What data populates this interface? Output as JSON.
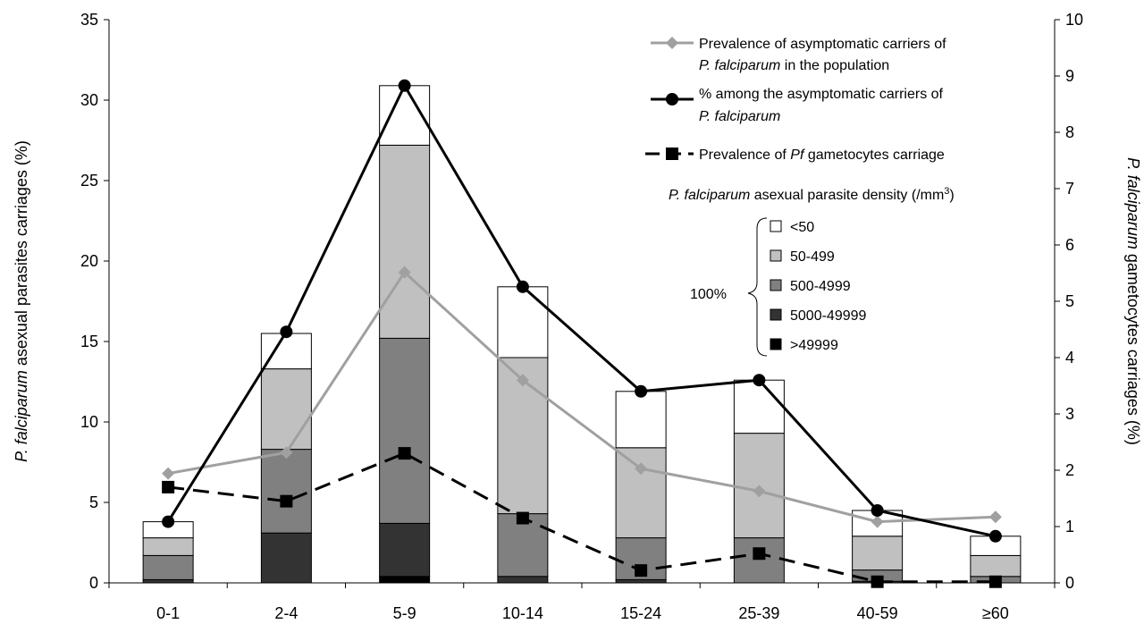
{
  "chart_data": {
    "type": "bar",
    "categories": [
      "0-1",
      "2-4",
      "5-9",
      "10-14",
      "15-24",
      "25-39",
      "40-59",
      "≥60"
    ],
    "y_left": {
      "label_italic": "P. falciparum",
      "label_rest": " asexual parasites carriages (%)",
      "range": [
        0,
        35
      ],
      "ticks": [
        0,
        5,
        10,
        15,
        20,
        25,
        30,
        35
      ]
    },
    "y_right": {
      "label_italic": "P. falciparum",
      "label_rest": " gametocytes carriages (%)",
      "range": [
        0,
        10
      ],
      "ticks": [
        0,
        1,
        2,
        3,
        4,
        5,
        6,
        7,
        8,
        9,
        10
      ]
    },
    "grid": false,
    "stack": {
      "title_italic": "P. falciparum",
      "title_rest": " asexual parasite density (/mm",
      "title_sup": "3",
      "title_end": ")",
      "brace_label": "100%",
      "series": [
        {
          "name": ">49999",
          "color": "#000000",
          "values": [
            0,
            0,
            0.4,
            0,
            0,
            0,
            0,
            0
          ]
        },
        {
          "name": "5000-49999",
          "color": "#333333",
          "values": [
            0.2,
            3.1,
            3.3,
            0.4,
            0.2,
            0,
            0.1,
            0
          ]
        },
        {
          "name": "500-4999",
          "color": "#808080",
          "values": [
            1.5,
            5.2,
            11.5,
            3.9,
            2.6,
            2.8,
            0.7,
            0.4
          ]
        },
        {
          "name": "50-499",
          "color": "#c0c0c0",
          "values": [
            1.1,
            5.0,
            12.0,
            9.7,
            5.6,
            6.5,
            2.1,
            1.3
          ]
        },
        {
          "name": "<50",
          "color": "#ffffff",
          "values": [
            1.0,
            2.2,
            3.7,
            4.4,
            3.5,
            3.3,
            1.6,
            1.2
          ]
        }
      ]
    },
    "lines": [
      {
        "name_lines": [
          {
            "text": "Prevalence of asymptomatic carriers of",
            "italic": ""
          },
          {
            "text": " in the population",
            "italic": "P. falciparum"
          }
        ],
        "axis": "left",
        "color": "#a0a0a0",
        "marker": "diamond",
        "dash": false,
        "values": [
          6.8,
          8.1,
          19.3,
          12.6,
          7.1,
          5.7,
          3.8,
          4.1
        ]
      },
      {
        "name_lines": [
          {
            "text": "% among the asymptomatic carriers of",
            "italic": ""
          },
          {
            "text": "",
            "italic": "P. falciparum"
          }
        ],
        "axis": "left",
        "color": "#000000",
        "marker": "circle",
        "dash": false,
        "values": [
          3.8,
          15.6,
          30.9,
          18.4,
          11.9,
          12.6,
          4.5,
          2.9
        ]
      },
      {
        "name_parts": [
          "Prevalence of ",
          "Pf",
          " gametocytes carriage"
        ],
        "axis": "right",
        "color": "#000000",
        "marker": "square",
        "dash": true,
        "values": [
          1.7,
          1.45,
          2.3,
          1.15,
          0.22,
          0.52,
          0.02,
          0.02
        ]
      }
    ]
  }
}
